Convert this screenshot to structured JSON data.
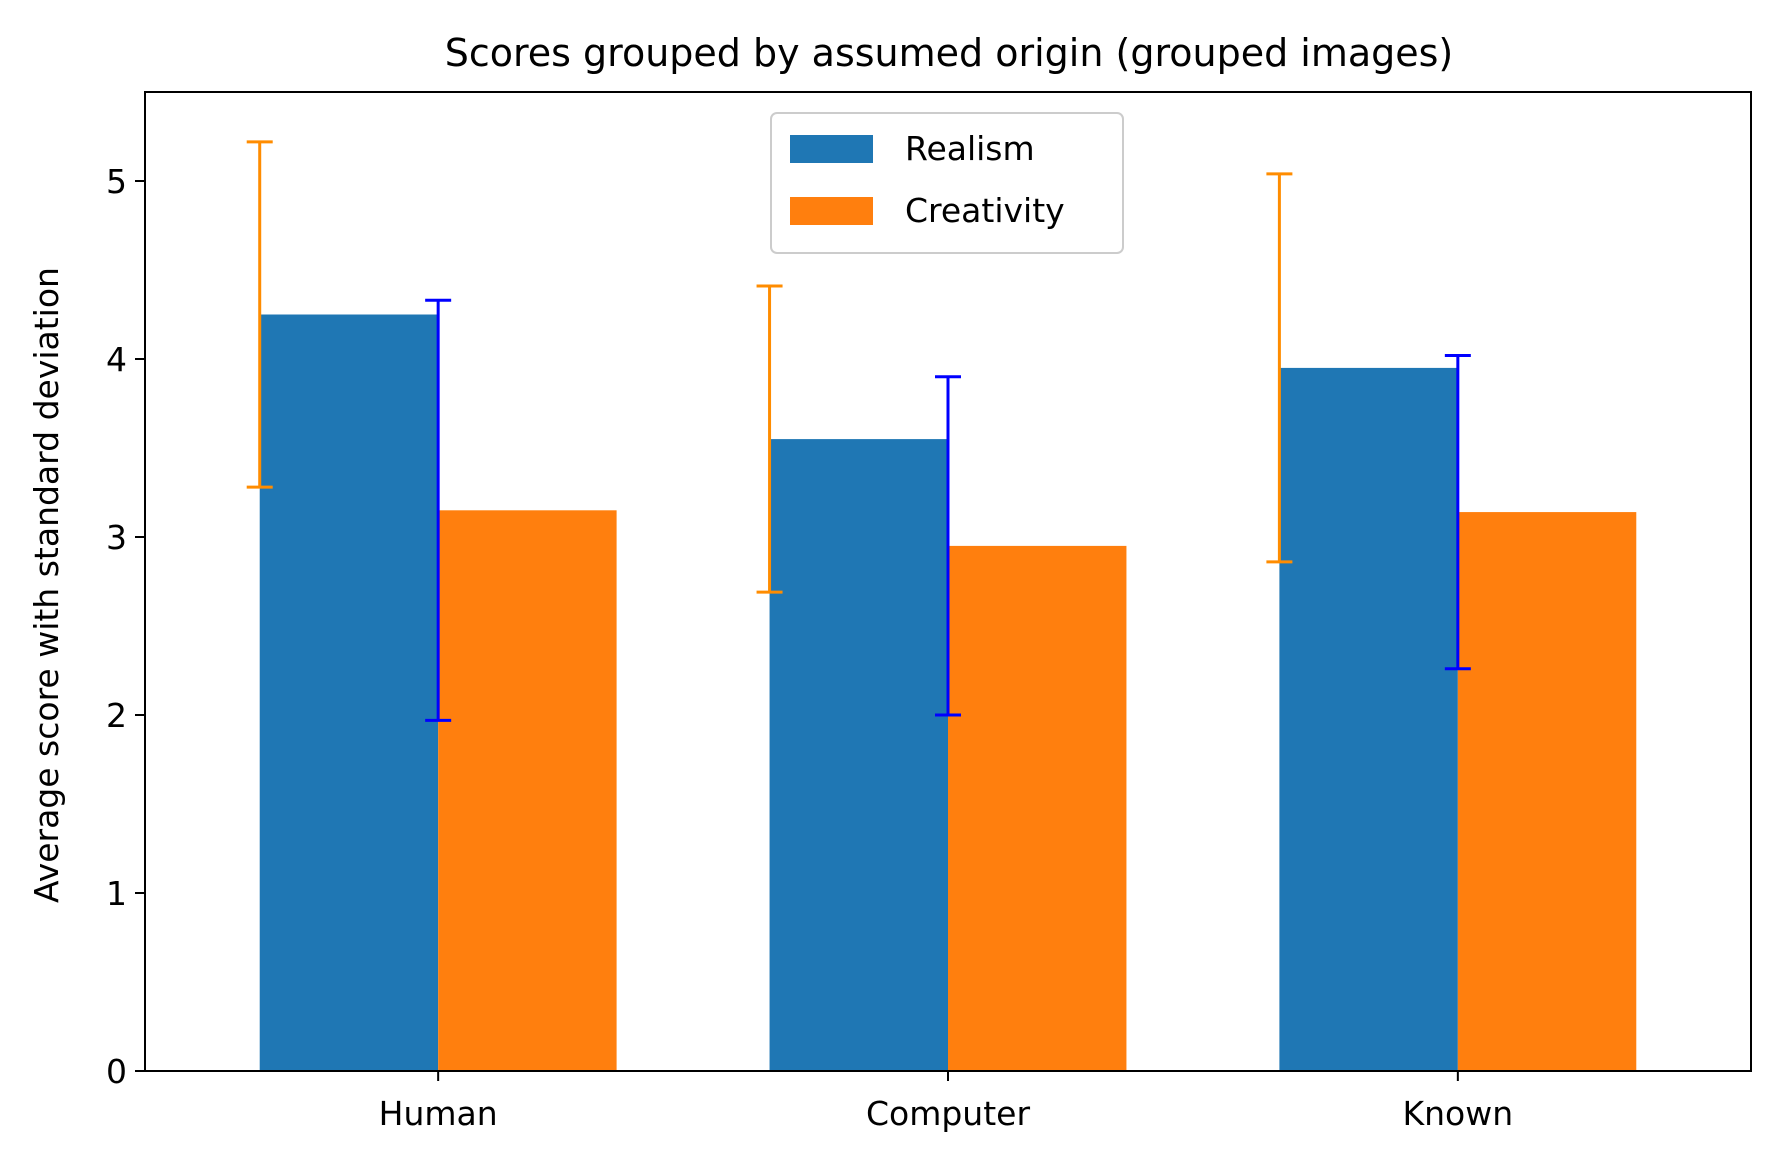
{
  "chart_data": {
    "type": "bar",
    "title": "Scores grouped by assumed origin (grouped images)",
    "xlabel": "",
    "ylabel": "Average score with standard deviation",
    "categories": [
      "Human",
      "Computer",
      "Known"
    ],
    "ylim": [
      0,
      5.5
    ],
    "yticks": [
      "0",
      "1",
      "2",
      "3",
      "4",
      "5"
    ],
    "series": [
      {
        "name": "Realism",
        "color": "#1f77b4",
        "error_color": "#ff8c00",
        "values": [
          4.25,
          3.55,
          3.95
        ],
        "errors": [
          0.97,
          0.86,
          1.09
        ]
      },
      {
        "name": "Creativity",
        "color": "#ff7f0e",
        "error_color": "#0000ff",
        "values": [
          3.15,
          2.95,
          3.14
        ],
        "errors": [
          1.18,
          0.95,
          0.88
        ]
      }
    ],
    "legend": "top-center",
    "grid": false
  }
}
